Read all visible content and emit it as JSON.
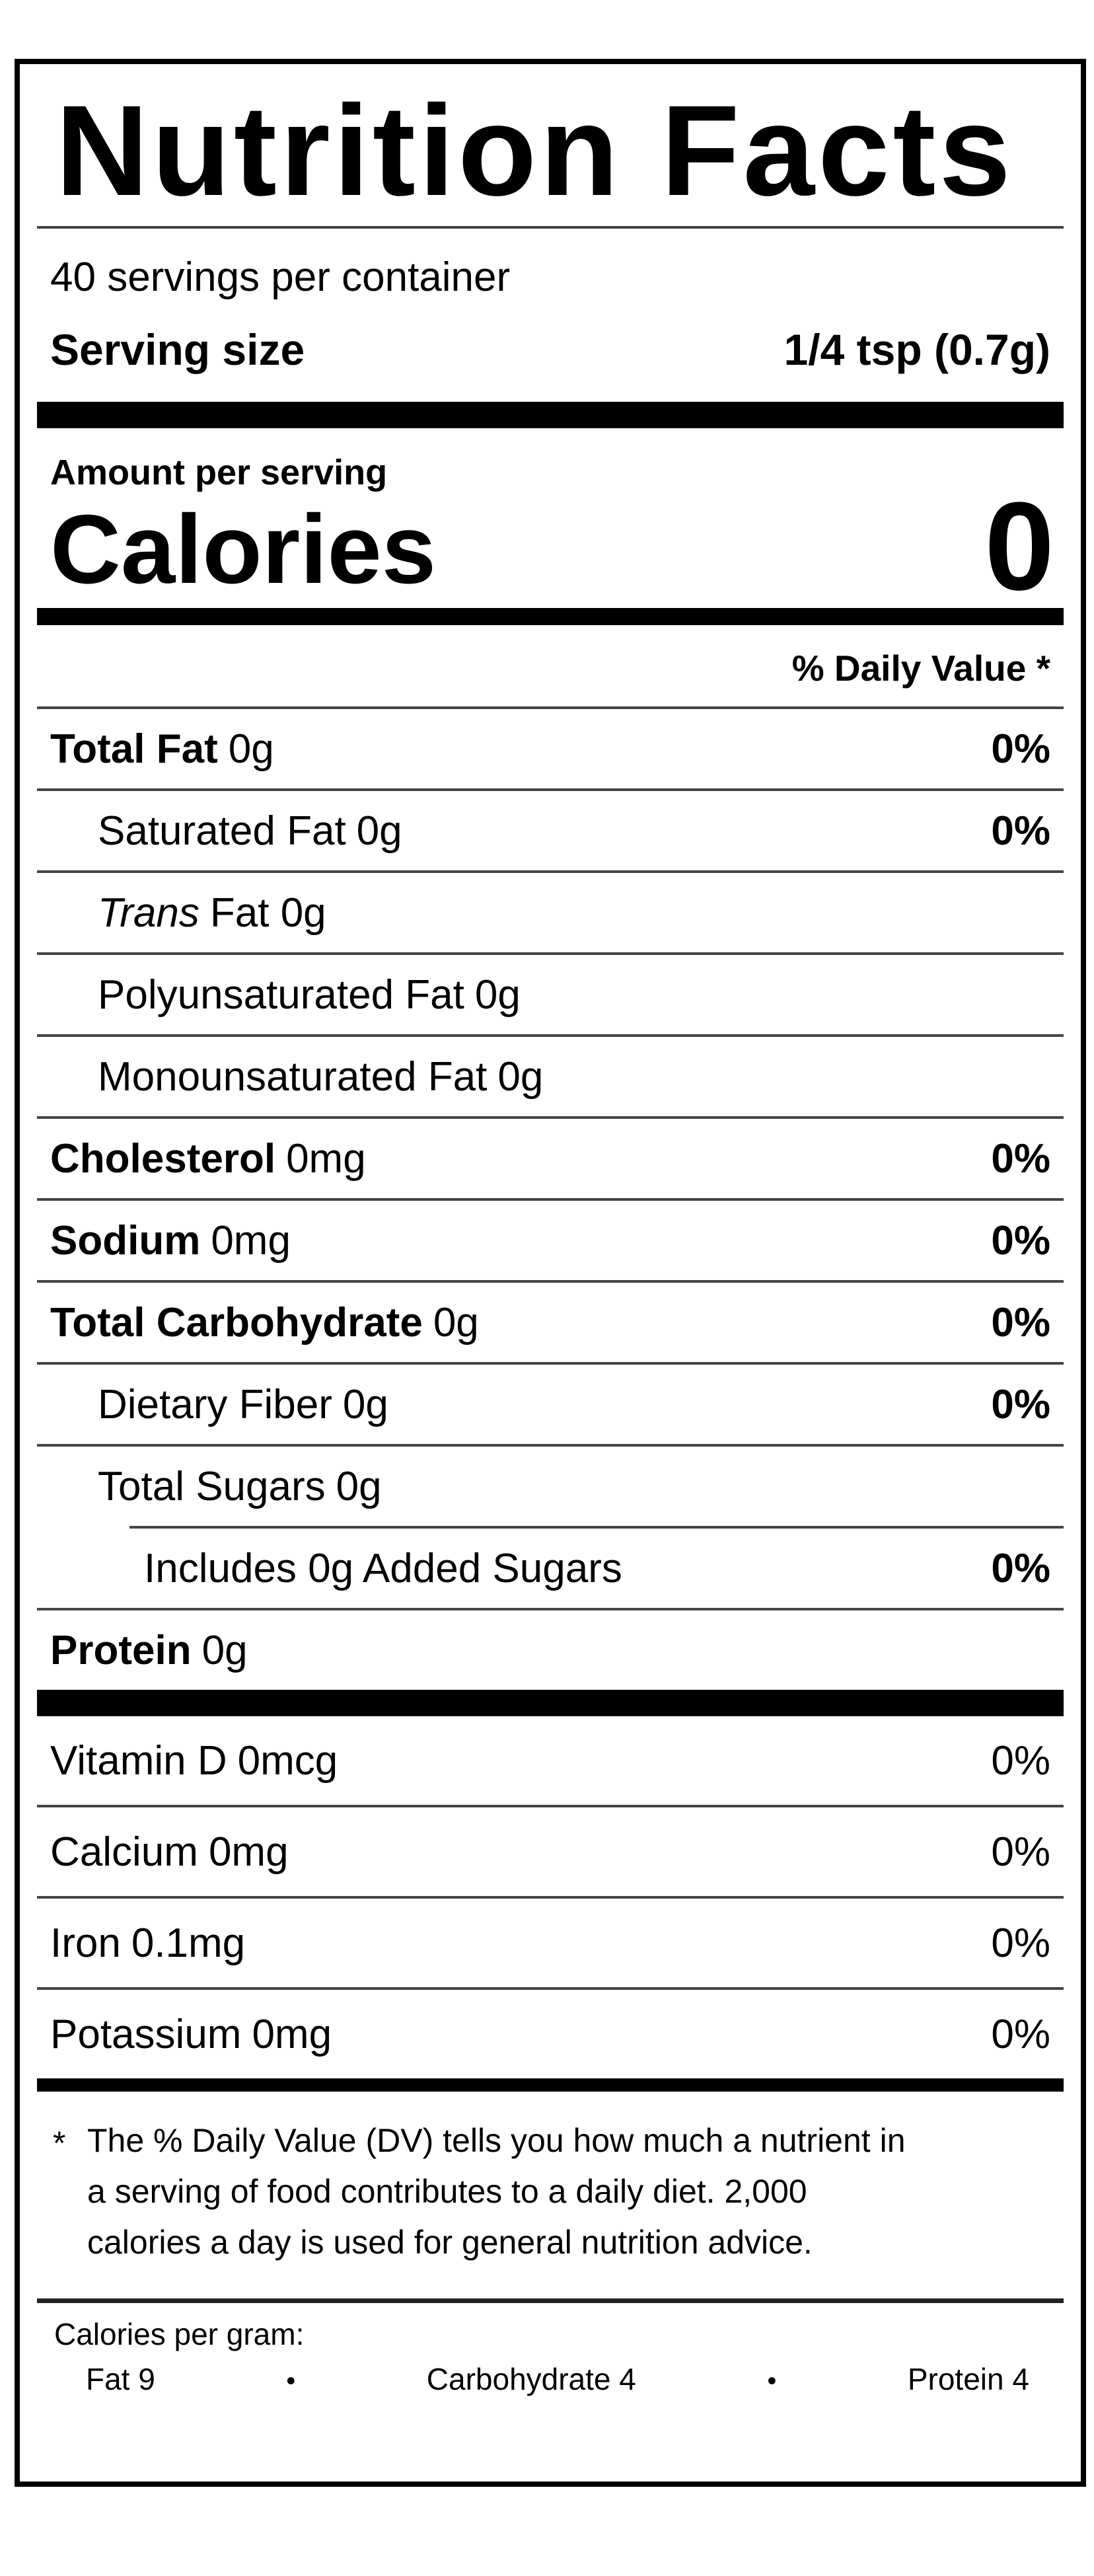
{
  "label": {
    "title": "Nutrition Facts",
    "servings_per_container": "40 servings per container",
    "serving_size": {
      "label": "Serving size",
      "value": "1/4 tsp (0.7g)"
    },
    "amount_per_serving": "Amount per serving",
    "calories": {
      "label": "Calories",
      "value": "0"
    },
    "daily_value_header": "% Daily Value *",
    "nutrients": [
      {
        "name": "Total Fat",
        "amount": "0g",
        "dv": "0%"
      },
      {
        "name": "Saturated Fat",
        "amount": "0g",
        "dv": "0%"
      },
      {
        "name": "Trans",
        "amount": "Fat 0g",
        "dv": ""
      },
      {
        "name": "Polyunsaturated Fat",
        "amount": "0g",
        "dv": ""
      },
      {
        "name": "Monounsaturated Fat",
        "amount": "0g",
        "dv": ""
      },
      {
        "name": "Cholesterol",
        "amount": "0mg",
        "dv": "0%"
      },
      {
        "name": "Sodium",
        "amount": "0mg",
        "dv": "0%"
      },
      {
        "name": "Total Carbohydrate",
        "amount": "0g",
        "dv": "0%"
      },
      {
        "name": "Dietary Fiber",
        "amount": "0g",
        "dv": "0%"
      },
      {
        "name": "Total Sugars",
        "amount": "0g",
        "dv": ""
      },
      {
        "name": "Includes 0g Added Sugars",
        "amount": "",
        "dv": "0%"
      },
      {
        "name": "Protein",
        "amount": "0g",
        "dv": ""
      }
    ],
    "vitamins": [
      {
        "name": "Vitamin D",
        "amount": "0mcg",
        "dv": "0%"
      },
      {
        "name": "Calcium",
        "amount": "0mg",
        "dv": "0%"
      },
      {
        "name": "Iron",
        "amount": "0.1mg",
        "dv": "0%"
      },
      {
        "name": "Potassium",
        "amount": "0mg",
        "dv": "0%"
      }
    ],
    "footnote": {
      "asterisk": "*",
      "text": "The % Daily Value (DV) tells you how much a nutrient in a serving of food contributes to a daily diet. 2,000 calories a day is used for general nutrition advice."
    },
    "calories_per_gram": {
      "title": "Calories per gram:",
      "bullet": "•",
      "items": [
        "Fat 9",
        "Carbohydrate 4",
        "Protein 4"
      ]
    },
    "colors": {
      "text": "#000000",
      "background": "#ffffff",
      "border": "#000000"
    }
  }
}
